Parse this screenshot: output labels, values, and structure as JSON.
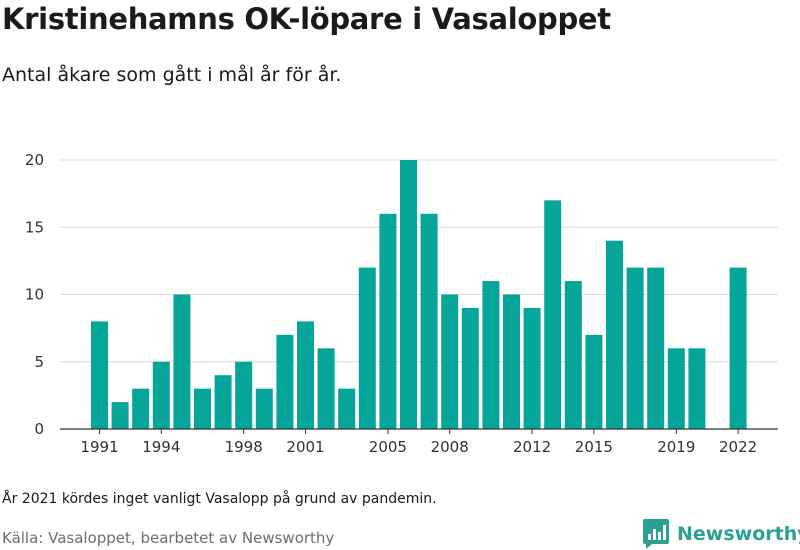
{
  "header": {
    "title": "Kristinehamns OK-löpare i Vasaloppet",
    "subtitle": "Antal åkare som gått i mål år för år."
  },
  "footer": {
    "note": "År 2021 kördes inget vanligt Vasalopp på grund av pandemin.",
    "source": "Källa: Vasaloppet, bearbetet av Newsworthy",
    "brand": "Newsworthy",
    "brand_icon": "newsworthy-logo-icon",
    "brand_color": "#2aa192"
  },
  "chart_data": {
    "type": "bar",
    "bar_color": "#06a59a",
    "x": [
      1991,
      1992,
      1993,
      1994,
      1995,
      1996,
      1997,
      1998,
      1999,
      2000,
      2001,
      2002,
      2003,
      2004,
      2005,
      2006,
      2007,
      2008,
      2009,
      2010,
      2011,
      2012,
      2013,
      2014,
      2015,
      2016,
      2017,
      2018,
      2019,
      2020,
      2021,
      2022
    ],
    "values": [
      8,
      2,
      3,
      5,
      10,
      3,
      4,
      5,
      3,
      7,
      8,
      6,
      3,
      12,
      16,
      20,
      16,
      10,
      9,
      11,
      10,
      9,
      17,
      11,
      7,
      14,
      12,
      12,
      6,
      6,
      null,
      12
    ],
    "x_tick_labels": [
      "1991",
      "1994",
      "1998",
      "2001",
      "2005",
      "2008",
      "2012",
      "2015",
      "2019",
      "2022"
    ],
    "y_ticks": [
      "0",
      "5",
      "10",
      "15",
      "20"
    ],
    "ylim": [
      0,
      20
    ],
    "grid": "horizontal",
    "xlabel": "",
    "ylabel": ""
  }
}
